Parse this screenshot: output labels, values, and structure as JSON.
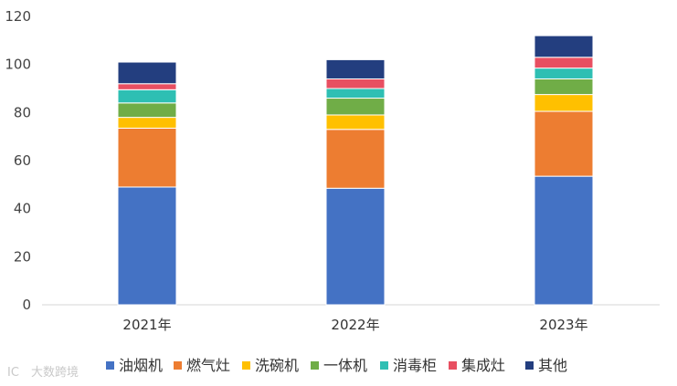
{
  "watermark": "大数跨境",
  "colors": {
    "油烟机": "#4472c4",
    "燃气灶": "#ed7d31",
    "洗碗机": "#ffc000",
    "一体机": "#70ad47",
    "消毒柜": "#2ebfb3",
    "集成灶": "#e84f61",
    "其他": "#233e7f"
  },
  "chart_data": {
    "type": "bar",
    "stacked": true,
    "title": "",
    "xlabel": "",
    "ylabel": "",
    "categories": [
      "2021年",
      "2022年",
      "2023年"
    ],
    "yticks": [
      0,
      20,
      40,
      60,
      80,
      100,
      120
    ],
    "ylim": [
      0,
      120
    ],
    "grid": false,
    "legend_position": "bottom",
    "series": [
      {
        "name": "油烟机",
        "values": [
          49,
          48.5,
          53.5
        ]
      },
      {
        "name": "燃气灶",
        "values": [
          24.5,
          24.5,
          27
        ]
      },
      {
        "name": "洗碗机",
        "values": [
          4.5,
          6,
          7
        ]
      },
      {
        "name": "一体机",
        "values": [
          6,
          7,
          6.5
        ]
      },
      {
        "name": "消毒柜",
        "values": [
          5.5,
          4,
          4.5
        ]
      },
      {
        "name": "集成灶",
        "values": [
          2.5,
          4,
          4.5
        ]
      },
      {
        "name": "其他",
        "values": [
          9,
          8,
          9
        ]
      }
    ]
  }
}
